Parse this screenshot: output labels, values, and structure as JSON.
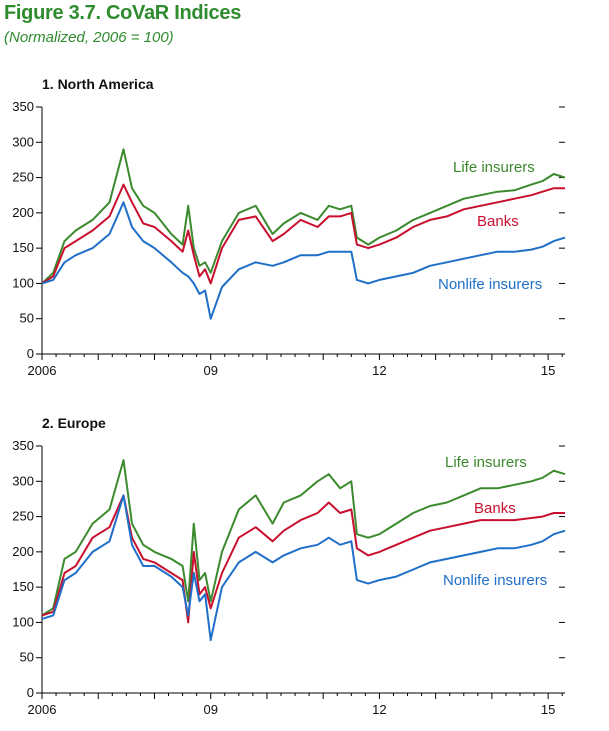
{
  "figure": {
    "title": "Figure 3.7. CoVaR Indices",
    "subtitle": "(Normalized, 2006 = 100)",
    "title_color": "#2e8b2e"
  },
  "colors": {
    "life_insurers": "#3c8a2e",
    "banks": "#c8102e",
    "nonlife_insurers": "#1f6fc9"
  },
  "chart_data": [
    {
      "type": "line",
      "panel_title": "1.  North America",
      "xlabel": "",
      "ylabel": "",
      "xlim": [
        2006,
        2015.3
      ],
      "ylim": [
        0,
        350
      ],
      "yticks": [
        0,
        50,
        100,
        150,
        200,
        250,
        300,
        350
      ],
      "xticks": [
        {
          "value": 2006,
          "label": "2006"
        },
        {
          "value": 2009,
          "label": "09"
        },
        {
          "value": 2012,
          "label": "12"
        },
        {
          "value": 2015,
          "label": "15"
        }
      ],
      "grid": false,
      "series": [
        {
          "name": "Life insurers",
          "color": "#3c8a2e",
          "x": [
            2006.0,
            2006.2,
            2006.4,
            2006.6,
            2006.9,
            2007.2,
            2007.45,
            2007.6,
            2007.8,
            2008.0,
            2008.3,
            2008.5,
            2008.6,
            2008.7,
            2008.8,
            2008.9,
            2009.0,
            2009.2,
            2009.5,
            2009.8,
            2010.1,
            2010.3,
            2010.6,
            2010.9,
            2011.1,
            2011.3,
            2011.5,
            2011.6,
            2011.8,
            2012.0,
            2012.3,
            2012.6,
            2012.9,
            2013.2,
            2013.5,
            2013.8,
            2014.1,
            2014.4,
            2014.7,
            2014.9,
            2015.1,
            2015.3
          ],
          "y": [
            100,
            115,
            160,
            175,
            190,
            215,
            290,
            235,
            210,
            200,
            170,
            155,
            210,
            150,
            125,
            130,
            115,
            160,
            200,
            210,
            170,
            185,
            200,
            190,
            210,
            205,
            210,
            165,
            155,
            165,
            175,
            190,
            200,
            210,
            220,
            225,
            230,
            232,
            240,
            245,
            255,
            250
          ]
        },
        {
          "name": "Banks",
          "color": "#c8102e",
          "x": [
            2006.0,
            2006.2,
            2006.4,
            2006.6,
            2006.9,
            2007.2,
            2007.45,
            2007.6,
            2007.8,
            2008.0,
            2008.3,
            2008.5,
            2008.6,
            2008.7,
            2008.8,
            2008.9,
            2009.0,
            2009.2,
            2009.5,
            2009.8,
            2010.1,
            2010.3,
            2010.6,
            2010.9,
            2011.1,
            2011.3,
            2011.5,
            2011.6,
            2011.8,
            2012.0,
            2012.3,
            2012.6,
            2012.9,
            2013.2,
            2013.5,
            2013.8,
            2014.1,
            2014.4,
            2014.7,
            2014.9,
            2015.1,
            2015.3
          ],
          "y": [
            100,
            110,
            150,
            160,
            175,
            195,
            240,
            215,
            185,
            180,
            160,
            145,
            175,
            140,
            110,
            120,
            100,
            150,
            190,
            195,
            160,
            170,
            190,
            180,
            195,
            195,
            200,
            155,
            150,
            155,
            165,
            180,
            190,
            195,
            205,
            210,
            215,
            220,
            225,
            230,
            235,
            235
          ]
        },
        {
          "name": "Nonlife insurers",
          "color": "#1f6fc9",
          "x": [
            2006.0,
            2006.2,
            2006.4,
            2006.6,
            2006.9,
            2007.2,
            2007.45,
            2007.6,
            2007.8,
            2008.0,
            2008.3,
            2008.5,
            2008.6,
            2008.7,
            2008.8,
            2008.9,
            2009.0,
            2009.2,
            2009.5,
            2009.8,
            2010.1,
            2010.3,
            2010.6,
            2010.9,
            2011.1,
            2011.3,
            2011.5,
            2011.6,
            2011.8,
            2012.0,
            2012.3,
            2012.6,
            2012.9,
            2013.2,
            2013.5,
            2013.8,
            2014.1,
            2014.4,
            2014.7,
            2014.9,
            2015.1,
            2015.3
          ],
          "y": [
            100,
            105,
            130,
            140,
            150,
            170,
            215,
            180,
            160,
            150,
            130,
            115,
            110,
            100,
            85,
            90,
            50,
            95,
            120,
            130,
            125,
            130,
            140,
            140,
            145,
            145,
            145,
            105,
            100,
            105,
            110,
            115,
            125,
            130,
            135,
            140,
            145,
            145,
            148,
            152,
            160,
            165
          ]
        }
      ]
    },
    {
      "type": "line",
      "panel_title": "2.  Europe",
      "xlabel": "",
      "ylabel": "",
      "xlim": [
        2006,
        2015.3
      ],
      "ylim": [
        0,
        350
      ],
      "yticks": [
        0,
        50,
        100,
        150,
        200,
        250,
        300,
        350
      ],
      "xticks": [
        {
          "value": 2006,
          "label": "2006"
        },
        {
          "value": 2009,
          "label": "09"
        },
        {
          "value": 2012,
          "label": "12"
        },
        {
          "value": 2015,
          "label": "15"
        }
      ],
      "grid": false,
      "series": [
        {
          "name": "Life insurers",
          "color": "#3c8a2e",
          "x": [
            2006.0,
            2006.2,
            2006.4,
            2006.6,
            2006.9,
            2007.2,
            2007.45,
            2007.6,
            2007.8,
            2008.0,
            2008.3,
            2008.5,
            2008.6,
            2008.7,
            2008.8,
            2008.9,
            2009.0,
            2009.2,
            2009.5,
            2009.8,
            2010.1,
            2010.3,
            2010.6,
            2010.9,
            2011.1,
            2011.3,
            2011.5,
            2011.6,
            2011.8,
            2012.0,
            2012.3,
            2012.6,
            2012.9,
            2013.2,
            2013.5,
            2013.8,
            2014.1,
            2014.4,
            2014.7,
            2014.9,
            2015.1,
            2015.3
          ],
          "y": [
            110,
            120,
            190,
            200,
            240,
            260,
            330,
            240,
            210,
            200,
            190,
            180,
            130,
            240,
            160,
            170,
            130,
            200,
            260,
            280,
            240,
            270,
            280,
            300,
            310,
            290,
            300,
            225,
            220,
            225,
            240,
            255,
            265,
            270,
            280,
            290,
            290,
            295,
            300,
            305,
            315,
            310
          ]
        },
        {
          "name": "Banks",
          "color": "#c8102e",
          "x": [
            2006.0,
            2006.2,
            2006.4,
            2006.6,
            2006.9,
            2007.2,
            2007.45,
            2007.6,
            2007.8,
            2008.0,
            2008.3,
            2008.5,
            2008.6,
            2008.7,
            2008.8,
            2008.9,
            2009.0,
            2009.2,
            2009.5,
            2009.8,
            2010.1,
            2010.3,
            2010.6,
            2010.9,
            2011.1,
            2011.3,
            2011.5,
            2011.6,
            2011.8,
            2012.0,
            2012.3,
            2012.6,
            2012.9,
            2013.2,
            2013.5,
            2013.8,
            2014.1,
            2014.4,
            2014.7,
            2014.9,
            2015.1,
            2015.3
          ],
          "y": [
            110,
            115,
            170,
            180,
            220,
            235,
            280,
            220,
            190,
            185,
            170,
            160,
            100,
            200,
            140,
            150,
            120,
            170,
            220,
            235,
            215,
            230,
            245,
            255,
            270,
            255,
            260,
            205,
            195,
            200,
            210,
            220,
            230,
            235,
            240,
            245,
            245,
            245,
            248,
            250,
            255,
            255
          ]
        },
        {
          "name": "Nonlife insurers",
          "color": "#1f6fc9",
          "x": [
            2006.0,
            2006.2,
            2006.4,
            2006.6,
            2006.9,
            2007.2,
            2007.45,
            2007.6,
            2007.8,
            2008.0,
            2008.3,
            2008.5,
            2008.6,
            2008.7,
            2008.8,
            2008.9,
            2009.0,
            2009.2,
            2009.5,
            2009.8,
            2010.1,
            2010.3,
            2010.6,
            2010.9,
            2011.1,
            2011.3,
            2011.5,
            2011.6,
            2011.8,
            2012.0,
            2012.3,
            2012.6,
            2012.9,
            2013.2,
            2013.5,
            2013.8,
            2014.1,
            2014.4,
            2014.7,
            2014.9,
            2015.1,
            2015.3
          ],
          "y": [
            105,
            110,
            160,
            170,
            200,
            215,
            280,
            210,
            180,
            180,
            165,
            150,
            110,
            170,
            130,
            140,
            75,
            150,
            185,
            200,
            185,
            195,
            205,
            210,
            220,
            210,
            215,
            160,
            155,
            160,
            165,
            175,
            185,
            190,
            195,
            200,
            205,
            205,
            210,
            215,
            225,
            230
          ]
        }
      ]
    }
  ]
}
